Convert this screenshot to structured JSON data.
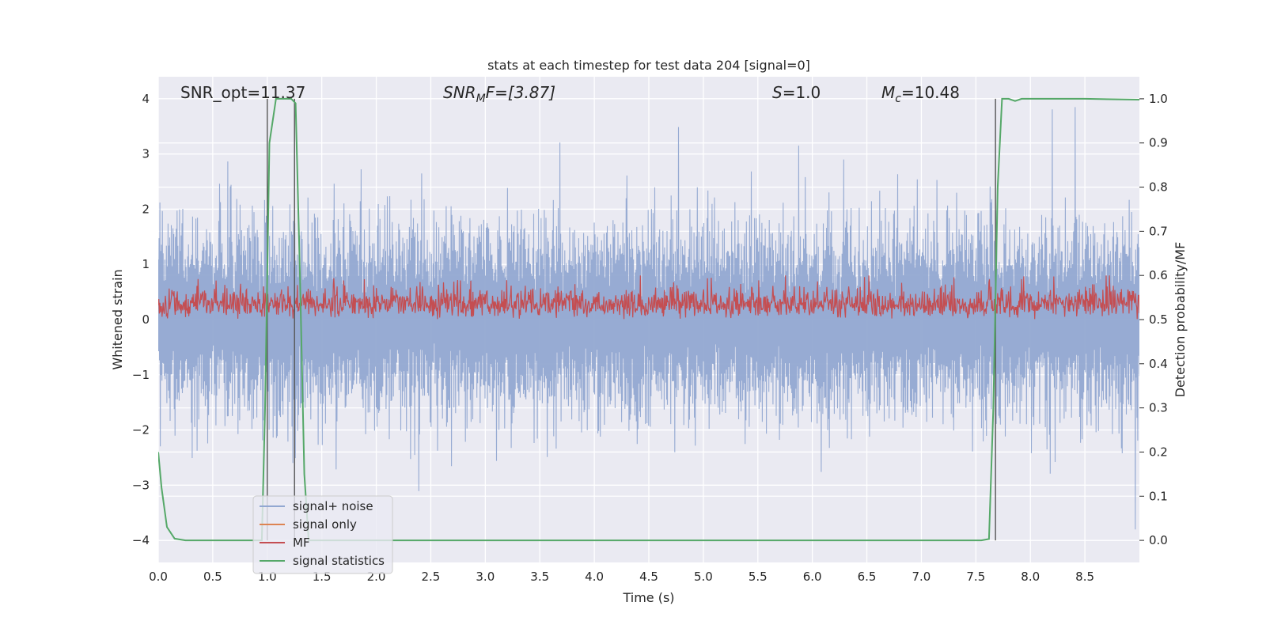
{
  "chart_data": {
    "type": "line",
    "title": "stats at each timestep for test data 204 [signal=0]",
    "xlabel": "Time (s)",
    "ylabel": "Whitened strain",
    "y2label": "Detection probability/MF",
    "xlim": [
      0.0,
      9.0
    ],
    "ylim": [
      -4.4,
      4.4
    ],
    "y2lim": [
      -0.05,
      1.05
    ],
    "xticks": [
      "0.0",
      "0.5",
      "1.0",
      "1.5",
      "2.0",
      "2.5",
      "3.0",
      "3.5",
      "4.0",
      "4.5",
      "5.0",
      "5.5",
      "6.0",
      "6.5",
      "7.0",
      "7.5",
      "8.0",
      "8.5"
    ],
    "yticks": [
      "4",
      "3",
      "2",
      "1",
      "0",
      "−1",
      "−2",
      "−3",
      "−4"
    ],
    "y2ticks": [
      "1.0",
      "0.9",
      "0.8",
      "0.7",
      "0.6",
      "0.5",
      "0.4",
      "0.3",
      "0.2",
      "0.1",
      "0.0"
    ],
    "grid": true,
    "legend_position": "lower-left",
    "annotations": {
      "snr_opt": "SNR_opt=11.37",
      "snr_mf_base": "SNR",
      "snr_mf_sub": "M",
      "snr_mf_rest": "F=[3.87]",
      "s_var": "S",
      "s_val": "=1.0",
      "mc_var": "M",
      "mc_sub": "c",
      "mc_val": "=10.48"
    },
    "vlines": [
      1.0,
      1.25,
      7.68
    ],
    "series": [
      {
        "name": "signal+ noise",
        "color": "#92a8d1",
        "description_amplitude": {
          "upper_typical": 1.9,
          "lower_typical": -1.9,
          "max": 4.0,
          "min": -3.95
        }
      },
      {
        "name": "signal only",
        "color": "#dd8452",
        "values": []
      },
      {
        "name": "MF",
        "color": "#c44e52",
        "axis": "right",
        "range": [
          0.5,
          0.6
        ]
      },
      {
        "name": "signal statistics",
        "color": "#55a868",
        "axis": "right",
        "x": [
          0.0,
          0.03,
          0.08,
          0.15,
          0.25,
          0.5,
          0.95,
          0.98,
          1.02,
          1.08,
          1.15,
          1.22,
          1.26,
          1.3,
          1.34,
          1.38,
          1.5,
          3.0,
          5.0,
          7.0,
          7.55,
          7.62,
          7.66,
          7.7,
          7.74,
          7.8,
          7.86,
          7.92,
          8.0,
          8.5,
          9.0
        ],
        "y": [
          0.2,
          0.12,
          0.03,
          0.004,
          0.0,
          0.0,
          0.0,
          0.3,
          0.9,
          1.0,
          1.0,
          1.0,
          0.99,
          0.6,
          0.15,
          0.0,
          0.0,
          0.0,
          0.0,
          0.0,
          0.0,
          0.003,
          0.3,
          0.8,
          1.0,
          1.0,
          0.995,
          1.0,
          1.0,
          1.0,
          0.998
        ]
      }
    ]
  },
  "legend": {
    "items": [
      {
        "label": "signal+ noise",
        "color": "#92a8d1"
      },
      {
        "label": "signal only",
        "color": "#dd8452"
      },
      {
        "label": "MF",
        "color": "#c44e52"
      },
      {
        "label": "signal statistics",
        "color": "#55a868"
      }
    ]
  }
}
